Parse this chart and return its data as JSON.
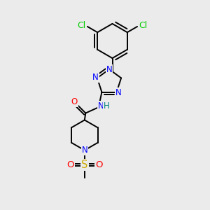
{
  "bg_color": "#ebebeb",
  "bond_color": "#000000",
  "atom_colors": {
    "N": "#0000ff",
    "O": "#ff0000",
    "S": "#ccaa00",
    "Cl": "#00cc00",
    "H": "#008080",
    "C": "#000000"
  },
  "font_size": 8.5,
  "bond_width": 1.4,
  "figsize": [
    3.0,
    3.0
  ],
  "dpi": 100
}
